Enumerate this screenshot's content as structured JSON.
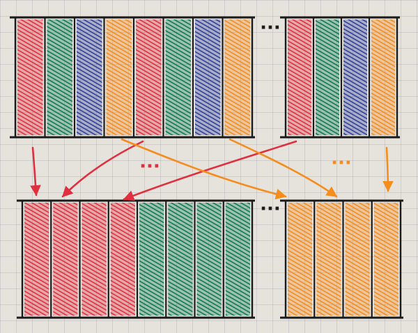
{
  "colors": {
    "red": "#e0303f",
    "green": "#0b7a52",
    "blue": "#2f3f9a",
    "orange": "#f58c1e",
    "ink": "#1b1b1b",
    "paper": "#e6e3dd"
  },
  "top_row": {
    "left_block": [
      "red",
      "green",
      "blue",
      "orange",
      "red",
      "green",
      "blue",
      "orange"
    ],
    "right_block": [
      "red",
      "green",
      "blue",
      "orange"
    ]
  },
  "bottom_row": {
    "left_block": [
      "red",
      "red",
      "red",
      "red",
      "green",
      "green",
      "green",
      "green"
    ],
    "right_block": [
      "orange",
      "orange",
      "orange",
      "orange"
    ]
  },
  "gap_marker_text": "···",
  "arrows": [
    {
      "from": "top-left-block",
      "to": "bottom-left-block",
      "color": "red"
    },
    {
      "from": "top-left-block",
      "to": "bottom-left-block",
      "color": "red"
    },
    {
      "from": "top-right-block",
      "to": "bottom-left-block",
      "color": "red"
    },
    {
      "from": "top-left-block",
      "to": "bottom-right-block",
      "color": "orange"
    },
    {
      "from": "top-left-block",
      "to": "bottom-right-block",
      "color": "orange"
    },
    {
      "from": "top-right-block",
      "to": "bottom-right-block",
      "color": "orange"
    }
  ]
}
